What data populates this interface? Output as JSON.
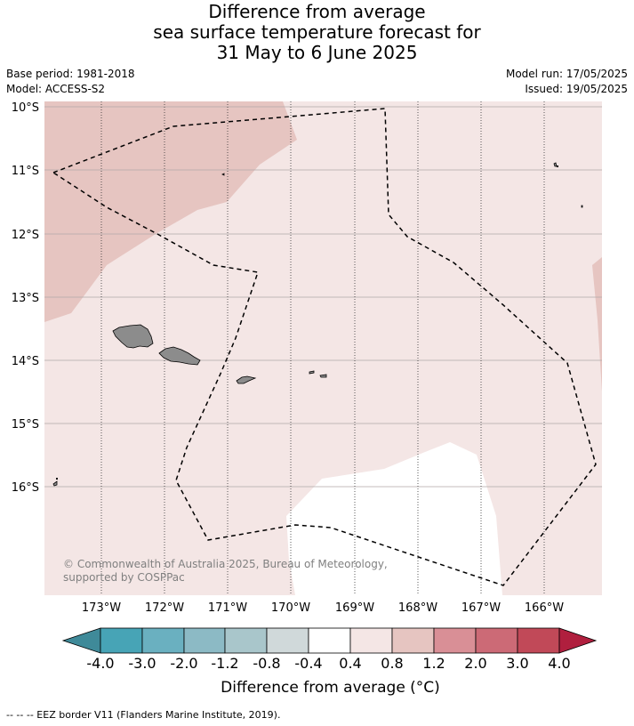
{
  "title": {
    "line1": "Difference from average",
    "line2": "sea surface temperature forecast for",
    "line3": "31 May to 6 June 2025"
  },
  "meta": {
    "base_period": "Base period: 1981-2018",
    "model": "Model: ACCESS-S2",
    "model_run": "Model run: 17/05/2025",
    "issued": "Issued: 19/05/2025"
  },
  "map": {
    "lat_labels": [
      "10°S",
      "11°S",
      "12°S",
      "13°S",
      "14°S",
      "15°S",
      "16°S"
    ],
    "lon_labels": [
      "173°W",
      "172°W",
      "171°W",
      "170°W",
      "169°W",
      "168°W",
      "167°W",
      "166°W"
    ],
    "copyright": "© Commonwealth of Australia 2025, Bureau of Meteorology, supported by COSPPac",
    "colors": {
      "ocean_0_4_to_0_8": "#f4e6e5",
      "ocean_0_8_to_1_2": "#e6c5c1",
      "ocean_m0_4_to_0_4": "#ffffff",
      "land": "#8c8c8c"
    }
  },
  "colorbar": {
    "tick_labels": [
      "-4.0",
      "-3.0",
      "-2.0",
      "-1.2",
      "-0.8",
      "-0.4",
      "0.4",
      "0.8",
      "1.2",
      "2.0",
      "3.0",
      "4.0"
    ],
    "colors": [
      "#3f8a99",
      "#47a4b6",
      "#6ab0c0",
      "#8cbac5",
      "#a9c6cb",
      "#d0d9da",
      "#ffffff",
      "#f4e6e5",
      "#e6c5c1",
      "#d98f96",
      "#cc6a76",
      "#c14958",
      "#b01f3e"
    ],
    "title": "Difference from average (°C)"
  },
  "footer": "--  --  -- EEZ border V11 (Flanders Marine Institute, 2019)."
}
